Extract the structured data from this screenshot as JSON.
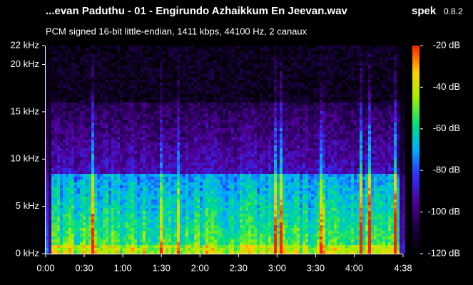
{
  "chart_data": {
    "type": "spectrogram",
    "title": "...evan Paduthu - 01 - Engirundo Azhaikkum En Jeevan.wav",
    "app": "spek",
    "version": "0.8.2",
    "subtitle": "PCM signed 16-bit little-endian, 1411 kbps, 44100 Hz, 2 canaux",
    "xlim": [
      0,
      278
    ],
    "xticks": [
      {
        "value": 0,
        "label": "0:00"
      },
      {
        "value": 30,
        "label": "0:30"
      },
      {
        "value": 60,
        "label": "1:00"
      },
      {
        "value": 90,
        "label": "1:30"
      },
      {
        "value": 120,
        "label": "2:00"
      },
      {
        "value": 150,
        "label": "2:30"
      },
      {
        "value": 180,
        "label": "3:00"
      },
      {
        "value": 210,
        "label": "3:30"
      },
      {
        "value": 240,
        "label": "4:00"
      },
      {
        "value": 278,
        "label": "4:38"
      }
    ],
    "ylim": [
      0,
      22
    ],
    "yticks": [
      {
        "value": 0,
        "label": "0 kHz"
      },
      {
        "value": 5,
        "label": "5 kHz"
      },
      {
        "value": 10,
        "label": "10 kHz"
      },
      {
        "value": 15,
        "label": "15 kHz"
      },
      {
        "value": 20,
        "label": "20 kHz"
      },
      {
        "value": 22,
        "label": "22 kHz"
      }
    ],
    "colorbar": {
      "lim": [
        -120,
        -20
      ],
      "ticks": [
        {
          "value": -20,
          "label": "-20 dB"
        },
        {
          "value": -40,
          "label": "-40 dB"
        },
        {
          "value": -60,
          "label": "-60 dB"
        },
        {
          "value": -80,
          "label": "-80 dB"
        },
        {
          "value": -100,
          "label": "-100 dB"
        },
        {
          "value": -120,
          "label": "-120 dB"
        }
      ]
    }
  }
}
